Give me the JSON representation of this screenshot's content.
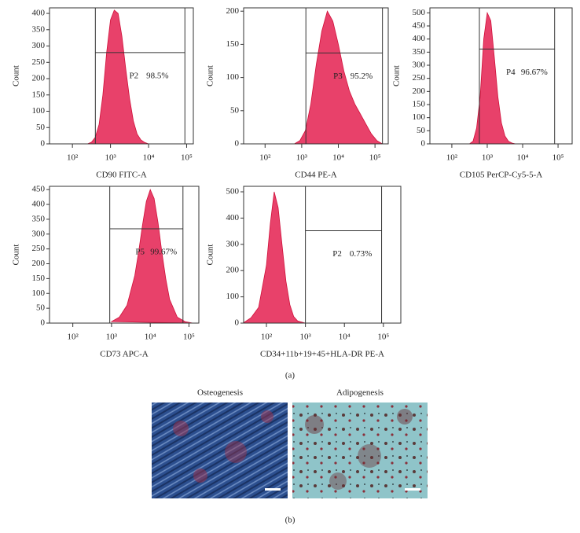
{
  "chart_data": [
    {
      "type": "area",
      "xscale": "log",
      "x_label": "CD90 FITC-A",
      "y_label": "Count",
      "color": "#e8416a",
      "x": [
        250,
        316,
        398,
        501,
        631,
        794,
        1000,
        1259,
        1585,
        1995,
        2512,
        3162,
        3981,
        5012,
        6310,
        7943,
        10000
      ],
      "values": [
        0,
        5,
        20,
        60,
        150,
        280,
        380,
        410,
        400,
        330,
        230,
        140,
        70,
        30,
        12,
        4,
        0
      ],
      "xlim": [
        25,
        150000
      ],
      "xticks": [
        {
          "value": 100,
          "label": "10²"
        },
        {
          "value": 1000,
          "label": "10³"
        },
        {
          "value": 10000,
          "label": "10⁴"
        },
        {
          "value": 100000,
          "label": "10⁵"
        }
      ],
      "ylim": [
        0,
        417
      ],
      "yticks": [
        0,
        50,
        100,
        150,
        200,
        250,
        300,
        350,
        400
      ],
      "gate": {
        "x": [
          400,
          90000
        ],
        "y": 280,
        "name": "P2",
        "value": 98.5,
        "value_label": "98.5%"
      }
    },
    {
      "type": "area",
      "xscale": "log",
      "x_label": "CD44 PE-A",
      "y_label": "Count",
      "color": "#e8416a",
      "x": [
        631,
        891,
        1259,
        1778,
        2512,
        3548,
        5012,
        7079,
        10000,
        14125,
        19953,
        28184,
        39811,
        56234,
        79433,
        112202,
        158489
      ],
      "values": [
        0,
        5,
        20,
        60,
        120,
        170,
        200,
        185,
        150,
        110,
        80,
        60,
        45,
        30,
        15,
        5,
        0
      ],
      "xlim": [
        26,
        230000
      ],
      "xticks": [
        {
          "value": 100,
          "label": "10²"
        },
        {
          "value": 1000,
          "label": "10³"
        },
        {
          "value": 10000,
          "label": "10⁴"
        },
        {
          "value": 100000,
          "label": "10⁵"
        }
      ],
      "ylim": [
        0,
        205
      ],
      "yticks": [
        0,
        50,
        100,
        150,
        200
      ],
      "gate": {
        "x": [
          1300,
          160000
        ],
        "y": 137,
        "name": "P3",
        "value": 95.2,
        "value_label": "95.2%"
      }
    },
    {
      "type": "area",
      "xscale": "log",
      "x_label": "CD105 PerCP-Cy5-5-A",
      "y_label": "Count",
      "color": "#e8416a",
      "x": [
        316,
        398,
        501,
        631,
        794,
        1000,
        1259,
        1585,
        1995,
        2512,
        3162,
        3981,
        5012,
        6310
      ],
      "values": [
        0,
        10,
        60,
        180,
        400,
        500,
        470,
        330,
        180,
        80,
        30,
        10,
        3,
        0
      ],
      "xlim": [
        24,
        250000
      ],
      "xticks": [
        {
          "value": 100,
          "label": "10²"
        },
        {
          "value": 1000,
          "label": "10³"
        },
        {
          "value": 10000,
          "label": "10⁴"
        },
        {
          "value": 100000,
          "label": "10⁵"
        }
      ],
      "ylim": [
        0,
        519
      ],
      "yticks": [
        0,
        50,
        100,
        150,
        200,
        250,
        300,
        350,
        400,
        450,
        500
      ],
      "gate": {
        "x": [
          600,
          80000
        ],
        "y": 362,
        "name": "P4",
        "value": 96.67,
        "value_label": "96.67%"
      }
    },
    {
      "type": "area",
      "xscale": "log",
      "x_label": "CD73 APC-A",
      "y_label": "Count",
      "color": "#e8416a",
      "x": [
        1000,
        1585,
        2512,
        3981,
        5012,
        6310,
        7943,
        10000,
        12589,
        15849,
        19953,
        25119,
        31623,
        50119,
        79433,
        125893
      ],
      "values": [
        5,
        20,
        60,
        160,
        240,
        330,
        410,
        450,
        420,
        340,
        240,
        150,
        80,
        20,
        5,
        0
      ],
      "xlim": [
        25,
        180000
      ],
      "xticks": [
        {
          "value": 100,
          "label": "10²"
        },
        {
          "value": 1000,
          "label": "10³"
        },
        {
          "value": 10000,
          "label": "10⁴"
        },
        {
          "value": 100000,
          "label": "10⁵"
        }
      ],
      "ylim": [
        0,
        461
      ],
      "yticks": [
        0,
        50,
        100,
        150,
        200,
        250,
        300,
        350,
        400,
        450
      ],
      "gate": {
        "x": [
          900,
          70000
        ],
        "y": 318,
        "name": "P5",
        "value": 99.67,
        "value_label": "99.67%"
      }
    },
    {
      "type": "area",
      "xscale": "log",
      "x_label": "CD34+11b+19+45+HLA-DR PE-A",
      "y_label": "Count",
      "color": "#e8416a",
      "x": [
        25,
        40,
        63,
        100,
        126,
        158,
        200,
        251,
        316,
        398,
        501,
        631,
        1000
      ],
      "values": [
        0,
        20,
        60,
        220,
        380,
        500,
        440,
        300,
        160,
        70,
        25,
        8,
        0
      ],
      "xlim": [
        26,
        280000
      ],
      "xticks": [
        {
          "value": 100,
          "label": "10²"
        },
        {
          "value": 1000,
          "label": "10³"
        },
        {
          "value": 10000,
          "label": "10⁴"
        },
        {
          "value": 100000,
          "label": "10⁵"
        }
      ],
      "ylim": [
        0,
        521
      ],
      "yticks": [
        0,
        100,
        200,
        300,
        400,
        500
      ],
      "gate": {
        "x": [
          1000,
          90000
        ],
        "y": 352,
        "name": "P2",
        "value": 0.73,
        "value_label": "0.73%"
      }
    }
  ],
  "panel_a": "(a)",
  "panel_b": "(b)",
  "images": [
    "Osteogenesis",
    "Adipogenesis"
  ]
}
